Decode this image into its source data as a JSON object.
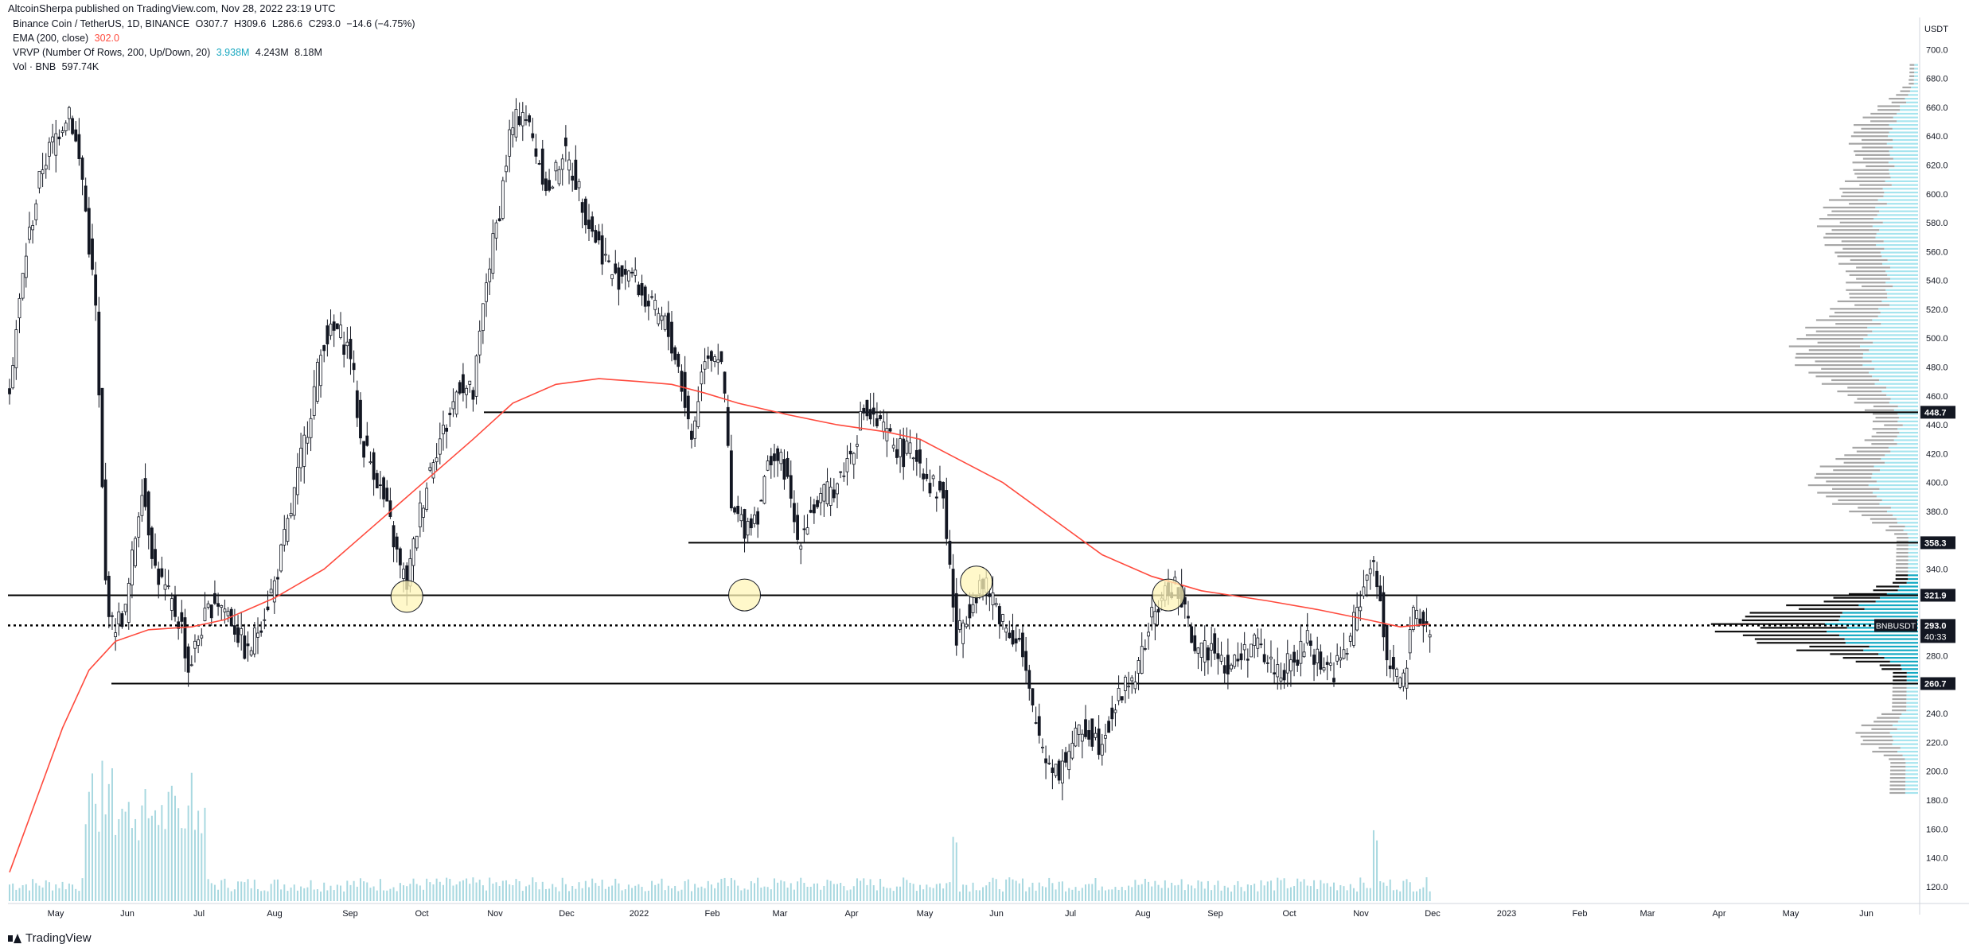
{
  "header": {
    "publish_line": "AltcoinSherpa published on TradingView.com, Nov 28, 2022 23:19 UTC"
  },
  "legend": {
    "symbol_line": "Binance Coin / TetherUS, 1D, BINANCE",
    "ohlc": {
      "o": "O307.7",
      "h": "H309.6",
      "l": "L286.6",
      "c": "C293.0",
      "chg": "−14.6 (−4.75%)"
    },
    "ema": {
      "label": "EMA (200, close)",
      "value": "302.0",
      "color": "#ff4a3d"
    },
    "vrvp": {
      "label": "VRVP (Number Of Rows, 200, Up/Down, 20)",
      "v1": "3.938M",
      "v2": "4.243M",
      "v3": "8.18M"
    },
    "vol": {
      "label": "Vol · BNB",
      "value": "597.74K"
    }
  },
  "footer": {
    "brand": "TradingView"
  },
  "chart_data": {
    "type": "candlestick",
    "symbol": "BNBUSDT",
    "price_axis": {
      "unit_label": "USDT",
      "ylim": [
        110,
        720
      ],
      "ticks": [
        120,
        140,
        160,
        180,
        200,
        220,
        240,
        260,
        280,
        300,
        320,
        340,
        360,
        380,
        400,
        420,
        440,
        460,
        480,
        500,
        520,
        540,
        560,
        580,
        600,
        620,
        640,
        660,
        680,
        700
      ]
    },
    "time_axis": {
      "labels": [
        "May",
        "Jun",
        "Jul",
        "Aug",
        "Sep",
        "Oct",
        "Nov",
        "Dec",
        "2022",
        "Feb",
        "Mar",
        "Apr",
        "May",
        "Jun",
        "Jul",
        "Aug",
        "Sep",
        "Oct",
        "Nov",
        "Dec",
        "2023",
        "Feb",
        "Mar",
        "Apr",
        "May",
        "Jun"
      ]
    },
    "price_path": [
      [
        0,
        470
      ],
      [
        5,
        560
      ],
      [
        10,
        620
      ],
      [
        14,
        640
      ],
      [
        18,
        660
      ],
      [
        22,
        610
      ],
      [
        26,
        520
      ],
      [
        29,
        330
      ],
      [
        31,
        300
      ],
      [
        35,
        310
      ],
      [
        40,
        400
      ],
      [
        44,
        340
      ],
      [
        48,
        320
      ],
      [
        52,
        300
      ],
      [
        54,
        270
      ],
      [
        58,
        300
      ],
      [
        62,
        320
      ],
      [
        66,
        310
      ],
      [
        70,
        290
      ],
      [
        72,
        280
      ],
      [
        76,
        305
      ],
      [
        80,
        330
      ],
      [
        85,
        380
      ],
      [
        90,
        440
      ],
      [
        95,
        500
      ],
      [
        99,
        505
      ],
      [
        103,
        490
      ],
      [
        106,
        430
      ],
      [
        110,
        410
      ],
      [
        114,
        380
      ],
      [
        118,
        340
      ],
      [
        120,
        330
      ],
      [
        124,
        380
      ],
      [
        128,
        420
      ],
      [
        132,
        440
      ],
      [
        136,
        470
      ],
      [
        140,
        460
      ],
      [
        144,
        540
      ],
      [
        148,
        590
      ],
      [
        151,
        640
      ],
      [
        155,
        660
      ],
      [
        159,
        630
      ],
      [
        163,
        600
      ],
      [
        167,
        630
      ],
      [
        171,
        610
      ],
      [
        175,
        580
      ],
      [
        179,
        560
      ],
      [
        183,
        540
      ],
      [
        187,
        550
      ],
      [
        191,
        530
      ],
      [
        194,
        520
      ],
      [
        198,
        510
      ],
      [
        202,
        480
      ],
      [
        206,
        430
      ],
      [
        210,
        490
      ],
      [
        214,
        490
      ],
      [
        216,
        460
      ],
      [
        218,
        380
      ],
      [
        222,
        370
      ],
      [
        226,
        380
      ],
      [
        230,
        420
      ],
      [
        234,
        410
      ],
      [
        238,
        360
      ],
      [
        242,
        380
      ],
      [
        246,
        390
      ],
      [
        250,
        400
      ],
      [
        254,
        420
      ],
      [
        258,
        450
      ],
      [
        262,
        440
      ],
      [
        266,
        430
      ],
      [
        270,
        420
      ],
      [
        274,
        420
      ],
      [
        278,
        400
      ],
      [
        282,
        390
      ],
      [
        284,
        340
      ],
      [
        286,
        290
      ],
      [
        289,
        310
      ],
      [
        293,
        330
      ],
      [
        297,
        320
      ],
      [
        301,
        300
      ],
      [
        305,
        290
      ],
      [
        309,
        240
      ],
      [
        313,
        210
      ],
      [
        317,
        200
      ],
      [
        321,
        220
      ],
      [
        325,
        230
      ],
      [
        329,
        220
      ],
      [
        333,
        240
      ],
      [
        337,
        260
      ],
      [
        341,
        270
      ],
      [
        344,
        300
      ],
      [
        348,
        320
      ],
      [
        352,
        330
      ],
      [
        356,
        300
      ],
      [
        360,
        280
      ],
      [
        364,
        290
      ],
      [
        368,
        270
      ],
      [
        372,
        280
      ],
      [
        376,
        290
      ],
      [
        380,
        275
      ],
      [
        384,
        270
      ],
      [
        388,
        275
      ],
      [
        392,
        290
      ],
      [
        396,
        275
      ],
      [
        400,
        270
      ],
      [
        404,
        285
      ],
      [
        408,
        320
      ],
      [
        411,
        345
      ],
      [
        414,
        320
      ],
      [
        416,
        280
      ],
      [
        418,
        270
      ],
      [
        421,
        260
      ],
      [
        424,
        305
      ],
      [
        426,
        310
      ],
      [
        429,
        293
      ]
    ],
    "ema200_path": [
      [
        0,
        130
      ],
      [
        8,
        180
      ],
      [
        16,
        230
      ],
      [
        24,
        270
      ],
      [
        32,
        290
      ],
      [
        42,
        298
      ],
      [
        55,
        300
      ],
      [
        65,
        305
      ],
      [
        80,
        320
      ],
      [
        95,
        340
      ],
      [
        110,
        370
      ],
      [
        125,
        400
      ],
      [
        140,
        430
      ],
      [
        152,
        455
      ],
      [
        165,
        468
      ],
      [
        178,
        472
      ],
      [
        190,
        470
      ],
      [
        200,
        468
      ],
      [
        210,
        462
      ],
      [
        220,
        455
      ],
      [
        235,
        447
      ],
      [
        250,
        440
      ],
      [
        265,
        435
      ],
      [
        275,
        430
      ],
      [
        285,
        418
      ],
      [
        300,
        400
      ],
      [
        315,
        375
      ],
      [
        330,
        350
      ],
      [
        345,
        335
      ],
      [
        360,
        325
      ],
      [
        380,
        318
      ],
      [
        395,
        312
      ],
      [
        410,
        305
      ],
      [
        420,
        300
      ],
      [
        429,
        302
      ]
    ],
    "volume_profile_note": "VRVP histogram at right, value area highlighted cyan, point of control near 300",
    "horizontal_levels": [
      {
        "value": 448.7,
        "label": "448.7"
      },
      {
        "value": 358.3,
        "label": "358.3"
      },
      {
        "value": 321.9,
        "label": "321.9"
      },
      {
        "value": 260.7,
        "label": "260.7"
      }
    ],
    "last_price": {
      "value": 293.0,
      "label": "293.0",
      "countdown": "40:33",
      "symbol_tag": "BNBUSDT"
    },
    "circled_touches": [
      {
        "date_index": 120,
        "price": 320
      },
      {
        "date_index": 222,
        "price": 321
      },
      {
        "date_index": 292,
        "price": 330
      },
      {
        "date_index": 350,
        "price": 321
      }
    ],
    "colors": {
      "candle": "#131722",
      "ema": "#ff4a3d",
      "volume": "#a8d8e0",
      "profile_up": "#3fc6dc",
      "profile_grey": "#9e9e9e",
      "circle_fill": "#fff6b8"
    }
  }
}
